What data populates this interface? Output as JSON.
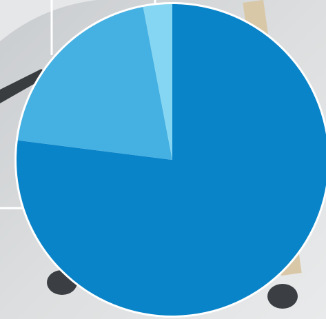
{
  "chart_data": {
    "type": "pie",
    "values": [
      77,
      20,
      3
    ],
    "colors": [
      "#0a84c8",
      "#45b0e2",
      "#85d6f2"
    ]
  }
}
